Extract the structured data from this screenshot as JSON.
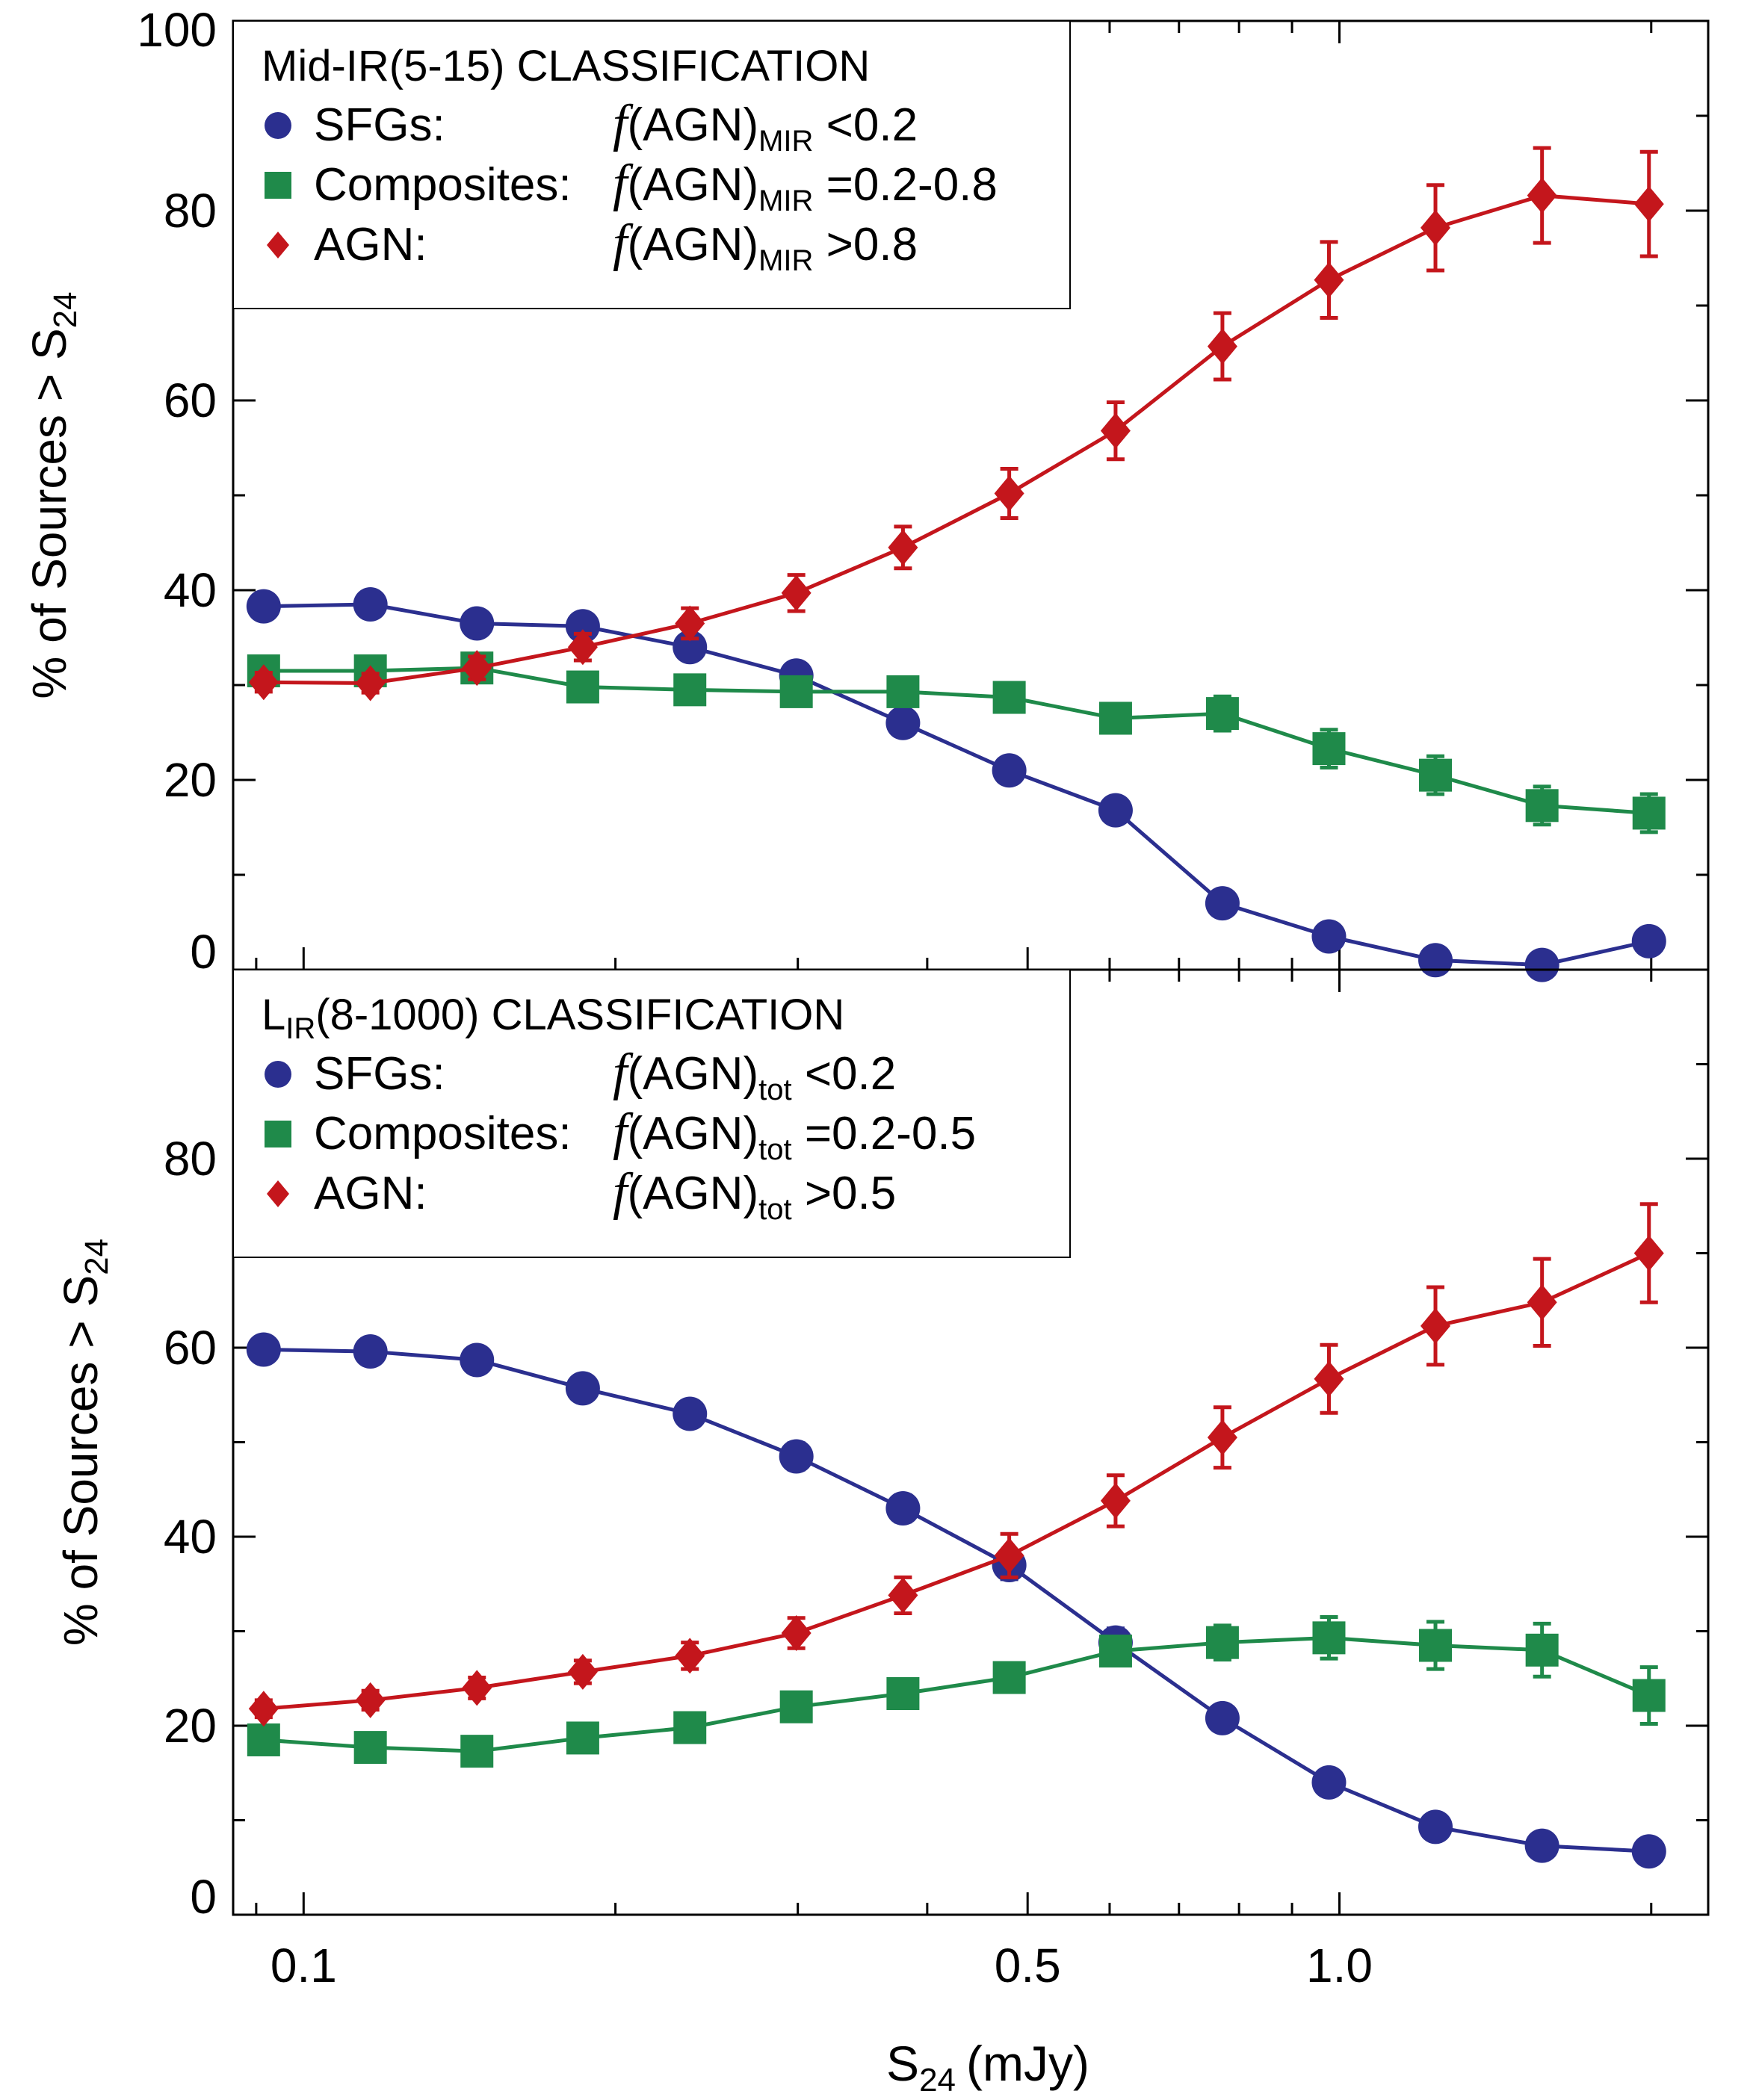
{
  "chart_data": [
    {
      "type": "line",
      "panel": "top",
      "x_scale": "log",
      "x": [
        0.0915,
        0.116,
        0.147,
        0.186,
        0.236,
        0.299,
        0.379,
        0.48,
        0.608,
        0.771,
        0.977,
        1.238,
        1.569,
        1.99
      ],
      "ylabel": "% of Sources > S",
      "ylabel_sub": "24",
      "ylim": [
        0,
        100
      ],
      "y_ticks": [
        "0",
        "20",
        "40",
        "60",
        "80",
        "100"
      ],
      "legend": {
        "title": "Mid-IR(5-15) CLASSIFICATION",
        "f_sub": "MIR",
        "entries": [
          {
            "name": "SFGs:",
            "func": "f",
            "expr": "(AGN)",
            "cond": "<0.2"
          },
          {
            "name": "Composites:",
            "func": "f",
            "expr": "(AGN)",
            "cond": "=0.2-0.8"
          },
          {
            "name": "AGN:",
            "func": "f",
            "expr": "(AGN)",
            "cond": ">0.8"
          }
        ]
      },
      "series": [
        {
          "name": "SFGs",
          "marker": "circle",
          "color": "#2b2f8f",
          "values": [
            38.3,
            38.5,
            36.5,
            36.2,
            34.0,
            31.0,
            26.0,
            21.0,
            16.8,
            7.0,
            3.5,
            1.0,
            0.5,
            3.0
          ],
          "errors": [
            0.8,
            0.8,
            0.8,
            0.8,
            1.0,
            1.0,
            1.0,
            1.0,
            1.0,
            0.8,
            0.8,
            0.5,
            0.5,
            0.8
          ]
        },
        {
          "name": "Composites",
          "marker": "square",
          "color": "#1f8a4a",
          "values": [
            31.5,
            31.5,
            31.8,
            29.8,
            29.5,
            29.3,
            29.3,
            28.7,
            26.5,
            27.0,
            23.3,
            20.5,
            17.3,
            16.5
          ],
          "errors": [
            0.8,
            0.8,
            0.8,
            0.8,
            1.0,
            1.0,
            1.2,
            1.2,
            1.5,
            1.8,
            2.0,
            2.0,
            2.0,
            2.0
          ]
        },
        {
          "name": "AGN",
          "marker": "diamond",
          "color": "#c4161c",
          "values": [
            30.3,
            30.2,
            31.8,
            34.0,
            36.5,
            39.7,
            44.5,
            50.2,
            56.8,
            65.7,
            72.7,
            78.2,
            81.6,
            80.7
          ],
          "errors": [
            1.0,
            1.0,
            1.2,
            1.4,
            1.6,
            1.9,
            2.2,
            2.6,
            3.0,
            3.5,
            4.0,
            4.5,
            5.0,
            5.5
          ]
        }
      ]
    },
    {
      "type": "line",
      "panel": "bottom",
      "x_scale": "log",
      "x": [
        0.0915,
        0.116,
        0.147,
        0.186,
        0.236,
        0.299,
        0.379,
        0.48,
        0.608,
        0.771,
        0.977,
        1.238,
        1.569,
        1.99
      ],
      "xlabel": "S",
      "xlabel_sub": "24",
      "xlabel_unit": "(mJy)",
      "xlim": [
        0.0855,
        2.27
      ],
      "x_ticks": [
        "0.1",
        "0.5",
        "1.0"
      ],
      "ylabel": "% of Sources > S",
      "ylabel_sub": "24",
      "ylim": [
        0,
        100
      ],
      "y_ticks": [
        "0",
        "20",
        "40",
        "60",
        "80"
      ],
      "legend": {
        "title_prefix": "L",
        "title_sub": "IR",
        "title_rest": "(8-1000) CLASSIFICATION",
        "f_sub": "tot",
        "entries": [
          {
            "name": "SFGs:",
            "func": "f",
            "expr": "(AGN)",
            "cond": "<0.2"
          },
          {
            "name": "Composites:",
            "func": "f",
            "expr": "(AGN)",
            "cond": "=0.2-0.5"
          },
          {
            "name": "AGN:",
            "func": "f",
            "expr": "(AGN)",
            "cond": ">0.5"
          }
        ]
      },
      "series": [
        {
          "name": "SFGs",
          "marker": "circle",
          "color": "#2b2f8f",
          "values": [
            59.8,
            59.6,
            58.7,
            55.7,
            53.0,
            48.5,
            43.0,
            37.0,
            28.8,
            20.8,
            14.0,
            9.3,
            7.3,
            6.7
          ],
          "errors": [
            1.2,
            1.2,
            1.2,
            1.2,
            1.3,
            1.4,
            1.4,
            1.5,
            1.5,
            1.3,
            1.1,
            0.9,
            0.8,
            0.8
          ]
        },
        {
          "name": "Composites",
          "marker": "square",
          "color": "#1f8a4a",
          "values": [
            18.5,
            17.7,
            17.3,
            18.7,
            19.8,
            22.0,
            23.4,
            25.1,
            27.9,
            28.8,
            29.3,
            28.5,
            28.0,
            23.2
          ],
          "errors": [
            0.8,
            0.8,
            0.8,
            0.8,
            0.9,
            1.0,
            1.0,
            1.2,
            1.5,
            1.8,
            2.2,
            2.5,
            2.8,
            3.0
          ]
        },
        {
          "name": "AGN",
          "marker": "diamond",
          "color": "#c4161c",
          "values": [
            21.8,
            22.7,
            24.0,
            25.7,
            27.4,
            29.8,
            33.8,
            38.0,
            43.8,
            50.5,
            56.7,
            62.3,
            64.8,
            70.0
          ],
          "errors": [
            0.9,
            1.0,
            1.1,
            1.2,
            1.4,
            1.6,
            1.9,
            2.3,
            2.7,
            3.2,
            3.6,
            4.1,
            4.6,
            5.2
          ]
        }
      ]
    }
  ]
}
